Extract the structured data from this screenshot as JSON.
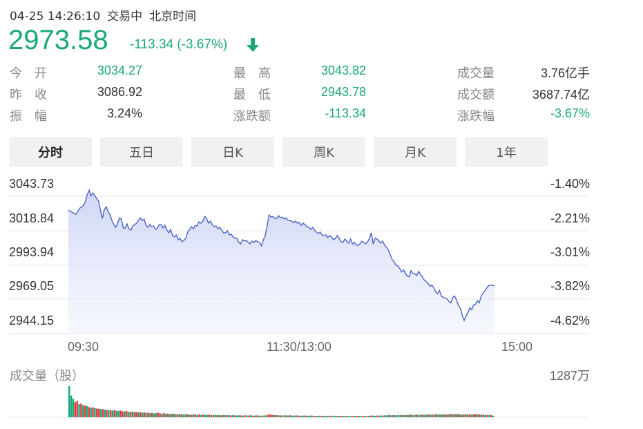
{
  "header": {
    "datetime": "04-25 14:26:10",
    "status": "交易中",
    "timezone": "北京时间"
  },
  "quote": {
    "price": "2973.58",
    "change": "-113.34 (-3.67%)",
    "direction_icon": "arrow-down-icon",
    "color_down": "#1aa87a",
    "color_up": "#e23a3a"
  },
  "stats": {
    "open_label": "今　开",
    "open": "3034.27",
    "prev_close_label": "昨　收",
    "prev_close": "3086.92",
    "amplitude_label": "振　幅",
    "amplitude": "3.24%",
    "high_label": "最　高",
    "high": "3043.82",
    "low_label": "最　低",
    "low": "2943.78",
    "change_amount_label": "涨跌额",
    "change_amount": "-113.34",
    "volume_label": "成交量",
    "volume": "3.76亿手",
    "turnover_label": "成交额",
    "turnover": "3687.74亿",
    "change_pct_label": "涨跌幅",
    "change_pct": "-3.67%"
  },
  "tabs": [
    "分时",
    "五日",
    "日K",
    "周K",
    "月K",
    "1年"
  ],
  "active_tab": "分时",
  "chart_data": {
    "type": "line",
    "y_ticks": [
      "3043.73",
      "3018.84",
      "2993.94",
      "2969.05",
      "2944.15"
    ],
    "y_pct_ticks": [
      "-1.40%",
      "-2.21%",
      "-3.01%",
      "-3.82%",
      "-4.62%"
    ],
    "x_ticks": [
      "09:30",
      "11:30/13:00",
      "15:00"
    ],
    "ylim": [
      2944.15,
      3043.73
    ],
    "line_color": "#4a63c9",
    "session_minutes": 240,
    "price_points": [
      [
        0,
        3024.5
      ],
      [
        2,
        3023
      ],
      [
        4,
        3021.5
      ],
      [
        6,
        3026
      ],
      [
        8,
        3028
      ],
      [
        9,
        3031
      ],
      [
        10,
        3036
      ],
      [
        11,
        3039
      ],
      [
        12,
        3035
      ],
      [
        13,
        3037
      ],
      [
        14,
        3035
      ],
      [
        16,
        3031
      ],
      [
        17,
        3024
      ],
      [
        18,
        3018.5
      ],
      [
        19,
        3025
      ],
      [
        20,
        3027
      ],
      [
        21,
        3023.5
      ],
      [
        22,
        3021
      ],
      [
        23,
        3017
      ],
      [
        24,
        3014
      ],
      [
        25,
        3012
      ],
      [
        26,
        3015
      ],
      [
        27,
        3019
      ],
      [
        28,
        3018
      ],
      [
        29,
        3011.5
      ],
      [
        30,
        3011.5
      ],
      [
        31,
        3014.5
      ],
      [
        32,
        3011
      ],
      [
        33,
        3010
      ],
      [
        34,
        3013
      ],
      [
        36,
        3015
      ],
      [
        37,
        3017
      ],
      [
        38,
        3019
      ],
      [
        39,
        3017
      ],
      [
        40,
        3018
      ],
      [
        41,
        3013.5
      ],
      [
        42,
        3012
      ],
      [
        43,
        3014
      ],
      [
        44,
        3012.5
      ],
      [
        45,
        3013
      ],
      [
        46,
        3010.5
      ],
      [
        47,
        3011.5
      ],
      [
        48,
        3014
      ],
      [
        49,
        3014
      ],
      [
        50,
        3011.5
      ],
      [
        51,
        3013.5
      ],
      [
        52,
        3010
      ],
      [
        53,
        3008
      ],
      [
        54,
        3010.5
      ],
      [
        55,
        3006
      ],
      [
        56,
        3005
      ],
      [
        57,
        3006.5
      ],
      [
        58,
        3003
      ],
      [
        59,
        3004
      ],
      [
        60,
        3001.5
      ],
      [
        61,
        3002.5
      ],
      [
        62,
        3004
      ],
      [
        63,
        3008.5
      ],
      [
        64,
        3010.5
      ],
      [
        65,
        3012.5
      ],
      [
        66,
        3011
      ],
      [
        67,
        3013.5
      ],
      [
        68,
        3013
      ],
      [
        69,
        3016
      ],
      [
        70,
        3015
      ],
      [
        71,
        3016.5
      ],
      [
        72,
        3020
      ],
      [
        73,
        3018.5
      ],
      [
        74,
        3015
      ],
      [
        75,
        3016.5
      ],
      [
        76,
        3014
      ],
      [
        77,
        3012.5
      ],
      [
        78,
        3013
      ],
      [
        79,
        3011
      ],
      [
        80,
        3012
      ],
      [
        81,
        3010
      ],
      [
        82,
        3008
      ],
      [
        83,
        3008
      ],
      [
        84,
        3009.5
      ],
      [
        85,
        3006.5
      ],
      [
        86,
        3007
      ],
      [
        87,
        3005
      ],
      [
        88,
        3004
      ],
      [
        89,
        3004
      ],
      [
        90,
        3001
      ],
      [
        91,
        3000
      ],
      [
        92,
        3003
      ],
      [
        93,
        3002
      ],
      [
        94,
        3002.5
      ],
      [
        95,
        3001
      ],
      [
        96,
        3000
      ],
      [
        97,
        3002
      ],
      [
        98,
        3001
      ],
      [
        99,
        3002.5
      ],
      [
        100,
        3001.5
      ],
      [
        101,
        3001
      ],
      [
        102,
        2998.5
      ],
      [
        103,
        3003
      ],
      [
        104,
        3006
      ],
      [
        105,
        3013.5
      ],
      [
        106,
        3021
      ],
      [
        107,
        3019.5
      ],
      [
        108,
        3020
      ],
      [
        109,
        3018.5
      ],
      [
        110,
        3018.5
      ],
      [
        111,
        3020.5
      ],
      [
        112,
        3019
      ],
      [
        113,
        3019.5
      ],
      [
        114,
        3018
      ],
      [
        115,
        3019
      ],
      [
        116,
        3017
      ],
      [
        117,
        3017
      ],
      [
        118,
        3016.5
      ],
      [
        119,
        3015.5
      ],
      [
        120,
        3016.5
      ],
      [
        121,
        3015
      ],
      [
        122,
        3015.5
      ],
      [
        123,
        3013.5
      ],
      [
        124,
        3015
      ],
      [
        125,
        3014
      ],
      [
        126,
        3012.5
      ],
      [
        127,
        3012
      ],
      [
        128,
        3010.5
      ],
      [
        129,
        3012
      ],
      [
        130,
        3010
      ],
      [
        131,
        3008.5
      ],
      [
        132,
        3007.5
      ],
      [
        133,
        3008.5
      ],
      [
        134,
        3006.5
      ],
      [
        135,
        3006
      ],
      [
        136,
        3006.5
      ],
      [
        137,
        3004.5
      ],
      [
        138,
        3006
      ],
      [
        139,
        3005
      ],
      [
        140,
        3003
      ],
      [
        141,
        3004
      ],
      [
        142,
        3006
      ],
      [
        143,
        3004
      ],
      [
        144,
        3001.5
      ],
      [
        145,
        3001
      ],
      [
        146,
        3003.5
      ],
      [
        147,
        3002
      ],
      [
        148,
        3000.5
      ],
      [
        149,
        3003.5
      ],
      [
        150,
        3000
      ],
      [
        151,
        3001
      ],
      [
        152,
        2999
      ],
      [
        153,
        2999
      ],
      [
        154,
        3000
      ],
      [
        155,
        3002
      ],
      [
        156,
        3001
      ],
      [
        157,
        3000
      ],
      [
        158,
        3001.5
      ],
      [
        159,
        3004
      ],
      [
        160,
        3008
      ],
      [
        161,
        3000
      ],
      [
        162,
        3004
      ],
      [
        163,
        3003.5
      ],
      [
        164,
        3002
      ],
      [
        165,
        3000.5
      ],
      [
        166,
        3002
      ],
      [
        167,
        2999
      ],
      [
        168,
        2997.5
      ],
      [
        169,
        2995.5
      ],
      [
        170,
        2992
      ],
      [
        171,
        2988.5
      ],
      [
        172,
        2987
      ],
      [
        173,
        2984.5
      ],
      [
        174,
        2984
      ],
      [
        175,
        2982
      ],
      [
        176,
        2979.5
      ],
      [
        177,
        2981
      ],
      [
        178,
        2978.5
      ],
      [
        179,
        2976.5
      ],
      [
        180,
        2976
      ],
      [
        181,
        2980.5
      ],
      [
        182,
        2978.5
      ],
      [
        183,
        2978
      ],
      [
        184,
        2977
      ],
      [
        185,
        2980
      ],
      [
        186,
        2977.5
      ],
      [
        187,
        2976
      ],
      [
        188,
        2973.5
      ],
      [
        189,
        2972.5
      ],
      [
        190,
        2971
      ],
      [
        191,
        2969
      ],
      [
        192,
        2970
      ],
      [
        193,
        2968
      ],
      [
        194,
        2965
      ],
      [
        195,
        2963.5
      ],
      [
        196,
        2966
      ],
      [
        197,
        2962
      ],
      [
        198,
        2961
      ],
      [
        199,
        2960.5
      ],
      [
        200,
        2960
      ],
      [
        201,
        2958
      ],
      [
        202,
        2957
      ],
      [
        203,
        2961
      ],
      [
        204,
        2962
      ],
      [
        205,
        2959
      ],
      [
        206,
        2955
      ],
      [
        207,
        2953
      ],
      [
        208,
        2948
      ],
      [
        209,
        2944.2
      ],
      [
        210,
        2947.5
      ],
      [
        211,
        2950
      ],
      [
        212,
        2953.5
      ],
      [
        213,
        2952
      ],
      [
        214,
        2955.5
      ],
      [
        215,
        2956
      ],
      [
        216,
        2958.5
      ],
      [
        217,
        2957
      ],
      [
        218,
        2962
      ],
      [
        219,
        2964
      ],
      [
        220,
        2966
      ],
      [
        221,
        2968
      ],
      [
        222,
        2969.5
      ],
      [
        223,
        2970
      ],
      [
        224,
        2969.7
      ],
      [
        225,
        2969.5
      ]
    ],
    "volume_label": "成交量（股）",
    "volume_max": "1287万",
    "volume_max_value": 1287,
    "volume_up_color": "#e23a3a",
    "volume_down_color": "#1aa87a",
    "volume_bars": [
      [
        1287,
        0
      ],
      [
        900,
        0
      ],
      [
        760,
        0
      ],
      [
        620,
        1
      ],
      [
        680,
        1
      ],
      [
        540,
        0
      ],
      [
        560,
        1
      ],
      [
        500,
        0
      ],
      [
        480,
        1
      ],
      [
        460,
        0
      ],
      [
        420,
        1
      ],
      [
        400,
        0
      ],
      [
        410,
        1
      ],
      [
        380,
        0
      ],
      [
        360,
        1
      ],
      [
        350,
        1
      ],
      [
        340,
        0
      ],
      [
        330,
        1
      ],
      [
        320,
        0
      ],
      [
        300,
        1
      ],
      [
        310,
        0
      ],
      [
        290,
        1
      ],
      [
        280,
        0
      ],
      [
        300,
        1
      ],
      [
        270,
        0
      ],
      [
        260,
        0
      ],
      [
        280,
        1
      ],
      [
        250,
        1
      ],
      [
        240,
        0
      ],
      [
        260,
        1
      ],
      [
        230,
        0
      ],
      [
        220,
        1
      ],
      [
        240,
        0
      ],
      [
        210,
        1
      ],
      [
        220,
        1
      ],
      [
        200,
        0
      ],
      [
        210,
        1
      ],
      [
        190,
        0
      ],
      [
        200,
        1
      ],
      [
        180,
        0
      ],
      [
        190,
        1
      ],
      [
        170,
        0
      ],
      [
        180,
        1
      ],
      [
        160,
        0
      ],
      [
        170,
        0
      ],
      [
        190,
        1
      ],
      [
        160,
        1
      ],
      [
        150,
        0
      ],
      [
        170,
        1
      ],
      [
        140,
        0
      ],
      [
        150,
        1
      ],
      [
        130,
        0
      ],
      [
        140,
        0
      ],
      [
        150,
        1
      ],
      [
        120,
        0
      ],
      [
        130,
        1
      ],
      [
        140,
        0
      ],
      [
        120,
        1
      ],
      [
        110,
        0
      ],
      [
        130,
        0
      ],
      [
        120,
        1
      ],
      [
        110,
        0
      ],
      [
        100,
        1
      ],
      [
        130,
        0
      ],
      [
        110,
        1
      ],
      [
        100,
        0
      ],
      [
        120,
        1
      ],
      [
        100,
        0
      ],
      [
        110,
        1
      ],
      [
        90,
        0
      ],
      [
        100,
        0
      ],
      [
        110,
        1
      ],
      [
        95,
        0
      ],
      [
        90,
        1
      ],
      [
        100,
        0
      ],
      [
        85,
        1
      ],
      [
        95,
        0
      ],
      [
        80,
        0
      ],
      [
        90,
        1
      ],
      [
        85,
        0
      ],
      [
        80,
        1
      ],
      [
        90,
        0
      ],
      [
        75,
        1
      ],
      [
        85,
        0
      ],
      [
        80,
        1
      ],
      [
        70,
        0
      ],
      [
        80,
        0
      ],
      [
        75,
        1
      ],
      [
        70,
        0
      ],
      [
        80,
        1
      ],
      [
        75,
        0
      ],
      [
        70,
        1
      ],
      [
        80,
        0
      ],
      [
        65,
        1
      ],
      [
        70,
        0
      ],
      [
        75,
        1
      ],
      [
        70,
        0
      ],
      [
        65,
        0
      ],
      [
        70,
        1
      ],
      [
        75,
        0
      ],
      [
        80,
        0
      ],
      [
        120,
        1
      ],
      [
        110,
        1
      ],
      [
        100,
        1
      ],
      [
        90,
        0
      ],
      [
        85,
        1
      ],
      [
        80,
        0
      ],
      [
        75,
        1
      ],
      [
        70,
        0
      ],
      [
        80,
        0
      ],
      [
        75,
        1
      ],
      [
        70,
        0
      ],
      [
        80,
        1
      ],
      [
        65,
        0
      ],
      [
        70,
        0
      ],
      [
        75,
        1
      ],
      [
        70,
        0
      ],
      [
        65,
        1
      ],
      [
        60,
        0
      ],
      [
        70,
        0
      ],
      [
        65,
        1
      ],
      [
        60,
        0
      ],
      [
        70,
        0
      ],
      [
        65,
        1
      ],
      [
        60,
        0
      ],
      [
        55,
        1
      ],
      [
        60,
        0
      ],
      [
        65,
        0
      ],
      [
        60,
        1
      ],
      [
        55,
        0
      ],
      [
        60,
        0
      ],
      [
        55,
        1
      ],
      [
        60,
        0
      ],
      [
        65,
        1
      ],
      [
        55,
        0
      ],
      [
        60,
        0
      ],
      [
        55,
        1
      ],
      [
        60,
        0
      ],
      [
        50,
        1
      ],
      [
        55,
        0
      ],
      [
        60,
        0
      ],
      [
        55,
        1
      ],
      [
        50,
        0
      ],
      [
        60,
        0
      ],
      [
        55,
        1
      ],
      [
        50,
        0
      ],
      [
        60,
        1
      ],
      [
        55,
        0
      ],
      [
        50,
        0
      ],
      [
        60,
        1
      ],
      [
        55,
        0
      ],
      [
        50,
        1
      ],
      [
        60,
        0
      ],
      [
        70,
        1
      ],
      [
        65,
        0
      ],
      [
        60,
        0
      ],
      [
        70,
        1
      ],
      [
        65,
        0
      ],
      [
        75,
        0
      ],
      [
        70,
        1
      ],
      [
        80,
        0
      ],
      [
        75,
        0
      ],
      [
        90,
        1
      ],
      [
        80,
        0
      ],
      [
        85,
        0
      ],
      [
        90,
        1
      ],
      [
        80,
        0
      ],
      [
        95,
        0
      ],
      [
        85,
        1
      ],
      [
        100,
        0
      ],
      [
        90,
        0
      ],
      [
        95,
        1
      ],
      [
        100,
        0
      ],
      [
        110,
        1
      ],
      [
        90,
        0
      ],
      [
        100,
        0
      ],
      [
        120,
        1
      ],
      [
        95,
        0
      ],
      [
        105,
        0
      ],
      [
        110,
        1
      ],
      [
        100,
        0
      ],
      [
        115,
        0
      ],
      [
        110,
        1
      ],
      [
        120,
        0
      ],
      [
        105,
        1
      ],
      [
        110,
        0
      ],
      [
        130,
        1
      ],
      [
        115,
        0
      ],
      [
        120,
        0
      ],
      [
        110,
        1
      ],
      [
        125,
        0
      ],
      [
        115,
        1
      ],
      [
        120,
        0
      ],
      [
        140,
        1
      ],
      [
        130,
        0
      ],
      [
        120,
        1
      ],
      [
        125,
        0
      ],
      [
        135,
        1
      ],
      [
        120,
        0
      ],
      [
        110,
        1
      ],
      [
        120,
        0
      ],
      [
        130,
        1
      ],
      [
        115,
        0
      ],
      [
        120,
        1
      ],
      [
        110,
        0
      ],
      [
        125,
        1
      ],
      [
        130,
        1
      ],
      [
        120,
        0
      ],
      [
        115,
        1
      ],
      [
        110,
        0
      ],
      [
        105,
        1
      ],
      [
        100,
        0
      ],
      [
        95,
        1
      ],
      [
        100,
        0
      ],
      [
        90,
        1
      ],
      [
        60,
        0
      ]
    ]
  }
}
